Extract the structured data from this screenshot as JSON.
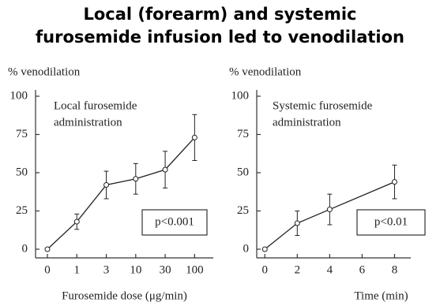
{
  "title": "Local (forearm) and systemic furosemide infusion led to venodilation",
  "chart_data": [
    {
      "type": "line",
      "ylabel": "% venodilation",
      "xlabel": "Furosemide dose (μg/min)",
      "annotation": [
        "Local furosemide",
        "administration"
      ],
      "p_label": "p<0.001",
      "categories": [
        "0",
        "1",
        "3",
        "10",
        "30",
        "100"
      ],
      "values": [
        0,
        18,
        42,
        46,
        52,
        73
      ],
      "errors": [
        0,
        5,
        9,
        10,
        12,
        15
      ],
      "color": "#222222",
      "ylim": [
        0,
        100
      ],
      "yticks": [
        0,
        25,
        50,
        75,
        100
      ]
    },
    {
      "type": "line",
      "ylabel": "% venodilation",
      "xlabel": "Time (min)",
      "annotation": [
        "Systemic furosemide",
        "administration"
      ],
      "p_label": "p<0.01",
      "x": [
        0,
        2,
        4,
        8
      ],
      "values": [
        0,
        17,
        26,
        44
      ],
      "errors": [
        0,
        8,
        10,
        11
      ],
      "color": "#222222",
      "xlim": [
        -0.5,
        9
      ],
      "xticks": [
        0,
        2,
        4,
        6,
        8
      ],
      "ylim": [
        0,
        100
      ],
      "yticks": [
        0,
        25,
        50,
        75,
        100
      ]
    }
  ]
}
